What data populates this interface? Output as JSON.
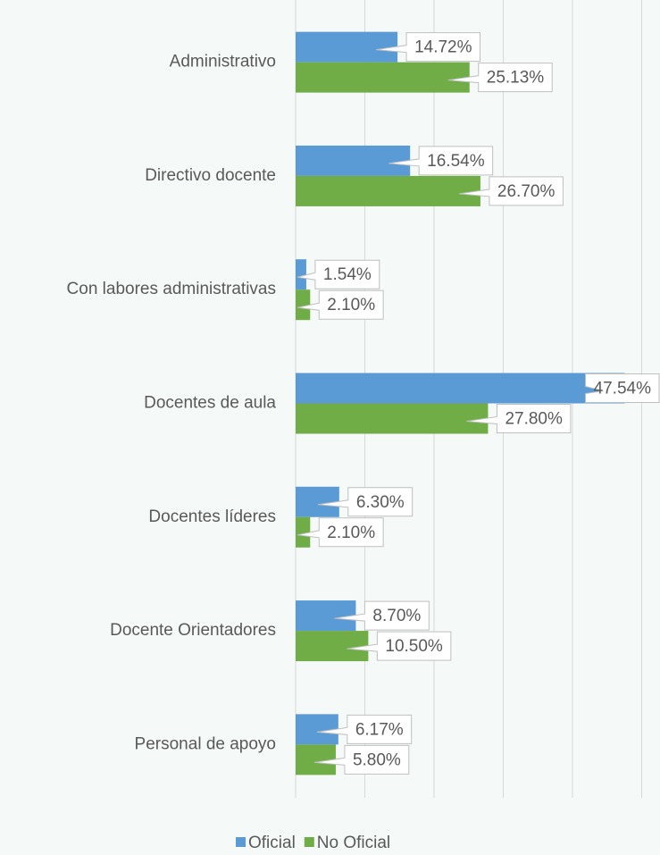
{
  "chart_data": {
    "type": "hbar",
    "categories": [
      "Administrativo",
      "Directivo docente",
      "Con labores administrativas",
      "Docentes de aula",
      "Docentes líderes",
      "Docente Orientadores",
      "Personal de apoyo"
    ],
    "series": [
      {
        "name": "Oficial",
        "color": "#5b9bd5",
        "values": [
          14.72,
          16.54,
          1.54,
          47.54,
          6.3,
          8.7,
          6.17
        ],
        "value_labels": [
          "14.72%",
          "16.54%",
          "1.54%",
          "47.54%",
          "6.30%",
          "8.70%",
          "6.17%"
        ]
      },
      {
        "name": "No Oficial",
        "color": "#70ad47",
        "values": [
          25.13,
          26.7,
          2.1,
          27.8,
          2.1,
          10.5,
          5.8
        ],
        "value_labels": [
          "25.13%",
          "26.70%",
          "2.10%",
          "27.80%",
          "2.10%",
          "10.50%",
          "5.80%"
        ]
      }
    ],
    "xlim": [
      0,
      50
    ],
    "xticks": [
      0,
      10,
      20,
      30,
      40,
      50
    ],
    "grid": true,
    "legend": "bottom"
  }
}
